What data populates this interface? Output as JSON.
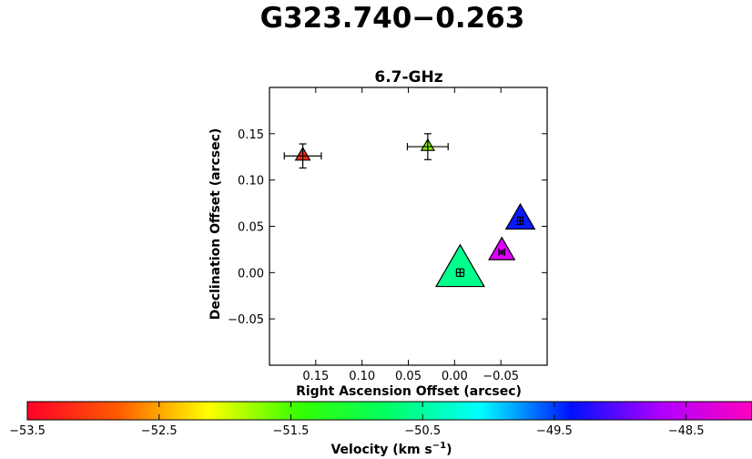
{
  "figure": {
    "title": "G323.740−0.263"
  },
  "chart_data": {
    "type": "scatter",
    "title": "6.7-GHz",
    "xlabel": "Right Ascension Offset (arcsec)",
    "ylabel": "Declination Offset (arcsec)",
    "xlim": [
      0.2,
      -0.1
    ],
    "ylim": [
      -0.1,
      0.2
    ],
    "x_inverted": true,
    "grid": false,
    "xticks": [
      0.15,
      0.1,
      0.05,
      0.0,
      -0.05
    ],
    "xtick_labels": [
      "0.15",
      "0.10",
      "0.05",
      "0.00",
      "−0.05"
    ],
    "yticks": [
      0.15,
      0.1,
      0.05,
      0.0,
      -0.05
    ],
    "ytick_labels": [
      "0.15",
      "0.10",
      "0.05",
      "0.00",
      "−0.05"
    ],
    "marker": "triangle",
    "points": [
      {
        "x": 0.164,
        "y": 0.126,
        "xerr": 0.02,
        "yerr": 0.013,
        "size": 0.009,
        "velocity": -53.4,
        "color": "#ff2a10"
      },
      {
        "x": 0.029,
        "y": 0.136,
        "xerr": 0.022,
        "yerr": 0.014,
        "size": 0.008,
        "velocity": -51.8,
        "color": "#8cff00"
      },
      {
        "x": -0.006,
        "y": 0.0,
        "xerr": 0.004,
        "yerr": 0.004,
        "size": 0.03,
        "velocity": -50.7,
        "color": "#00ff8c"
      },
      {
        "x": -0.071,
        "y": 0.056,
        "xerr": 0.003,
        "yerr": 0.004,
        "size": 0.018,
        "velocity": -49.5,
        "color": "#0a1aff"
      },
      {
        "x": -0.051,
        "y": 0.022,
        "xerr": 0.003,
        "yerr": 0.002,
        "size": 0.016,
        "velocity": -48.3,
        "color": "#e000ff"
      }
    ],
    "colorbar": {
      "label": "Velocity (km s",
      "label_sup": "−1",
      "label_close": ")",
      "range": [
        -53.5,
        -48.0
      ],
      "colormap": "gist_rainbow",
      "ticks": [
        -53.5,
        -52.5,
        -51.5,
        -50.5,
        -49.5,
        -48.5
      ],
      "tick_labels": [
        "−53.5",
        "−52.5",
        "−51.5",
        "−50.5",
        "−49.5",
        "−48.5"
      ],
      "stops": [
        "#ff0029",
        "#ff5a00",
        "#ffff00",
        "#34ff00",
        "#00ff66",
        "#00ffff",
        "#0011ff",
        "#b000ff",
        "#ff00bf"
      ]
    }
  }
}
